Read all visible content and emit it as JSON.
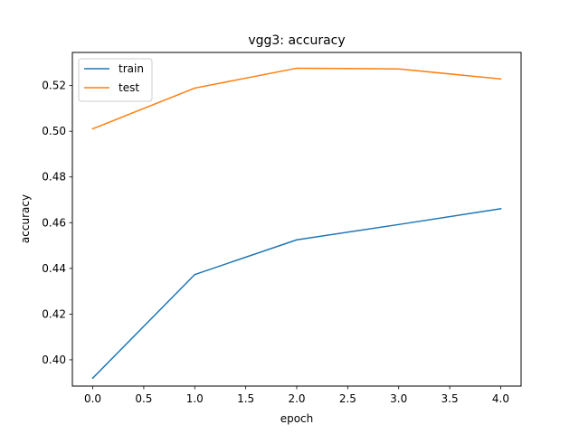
{
  "chart_data": {
    "type": "line",
    "title": "vgg3: accuracy",
    "xlabel": "epoch",
    "ylabel": "accuracy",
    "x": [
      0,
      1,
      2,
      3,
      4
    ],
    "xlim": [
      -0.2,
      4.2
    ],
    "ylim": [
      0.3885,
      0.5345
    ],
    "xticks": [
      0.0,
      0.5,
      1.0,
      1.5,
      2.0,
      2.5,
      3.0,
      3.5,
      4.0
    ],
    "xtick_labels": [
      "0.0",
      "0.5",
      "1.0",
      "1.5",
      "2.0",
      "2.5",
      "3.0",
      "3.5",
      "4.0"
    ],
    "yticks": [
      0.4,
      0.42,
      0.44,
      0.46,
      0.48,
      0.5,
      0.52
    ],
    "ytick_labels": [
      "0.40",
      "0.42",
      "0.44",
      "0.46",
      "0.48",
      "0.50",
      "0.52"
    ],
    "grid": false,
    "legend_position": "upper-left",
    "series": [
      {
        "name": "train",
        "color": "#1f77b4",
        "values": [
          0.392,
          0.4373,
          0.4525,
          0.4592,
          0.4661
        ]
      },
      {
        "name": "test",
        "color": "#ff7f0e",
        "values": [
          0.5011,
          0.5189,
          0.5276,
          0.5273,
          0.5229
        ]
      }
    ]
  }
}
